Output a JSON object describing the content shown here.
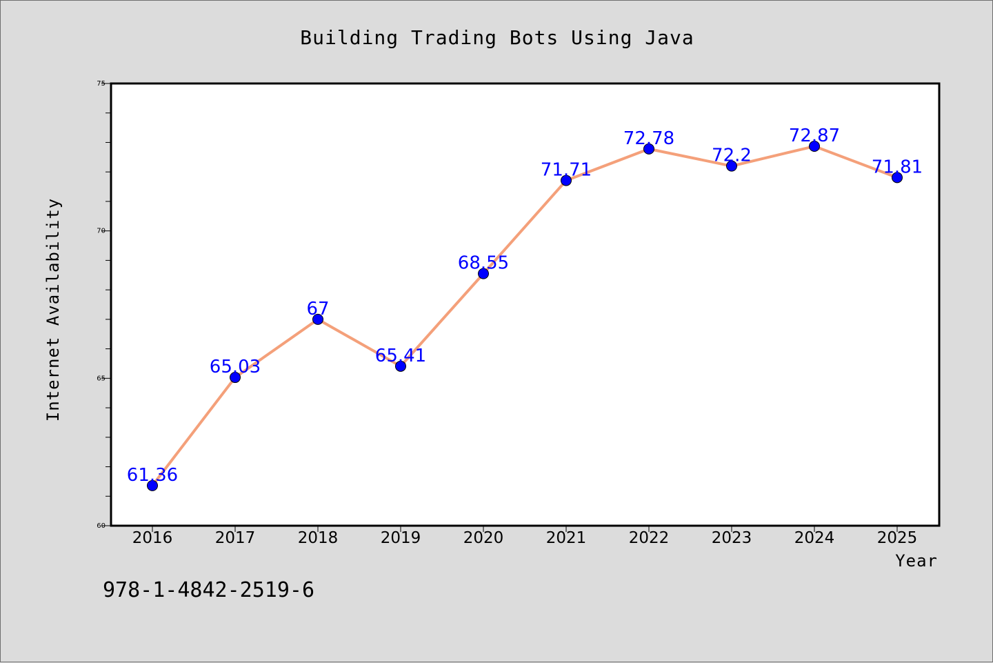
{
  "chart_data": {
    "type": "line",
    "title": "Building Trading Bots Using Java",
    "xlabel": "Year",
    "ylabel": "Internet Availability",
    "categories": [
      "2016",
      "2017",
      "2018",
      "2019",
      "2020",
      "2021",
      "2022",
      "2023",
      "2024",
      "2025"
    ],
    "series": [
      {
        "values": [
          61.36,
          65.03,
          67,
          65.41,
          68.55,
          71.71,
          72.78,
          72.2,
          72.87,
          71.81
        ],
        "labels": [
          "61.36",
          "65.03",
          "67",
          "65.41",
          "68.55",
          "71.71",
          "72.78",
          "72.2",
          "72.87",
          "71.81"
        ]
      }
    ],
    "ylim": [
      60,
      75
    ],
    "yticks": [
      "60",
      "65",
      "70",
      "75"
    ],
    "grid": false,
    "line_color": "#f4a07a",
    "marker_color": "#0000ff",
    "label_color": "#0000ff"
  },
  "footer": {
    "isbn": "978-1-4842-2519-6"
  }
}
